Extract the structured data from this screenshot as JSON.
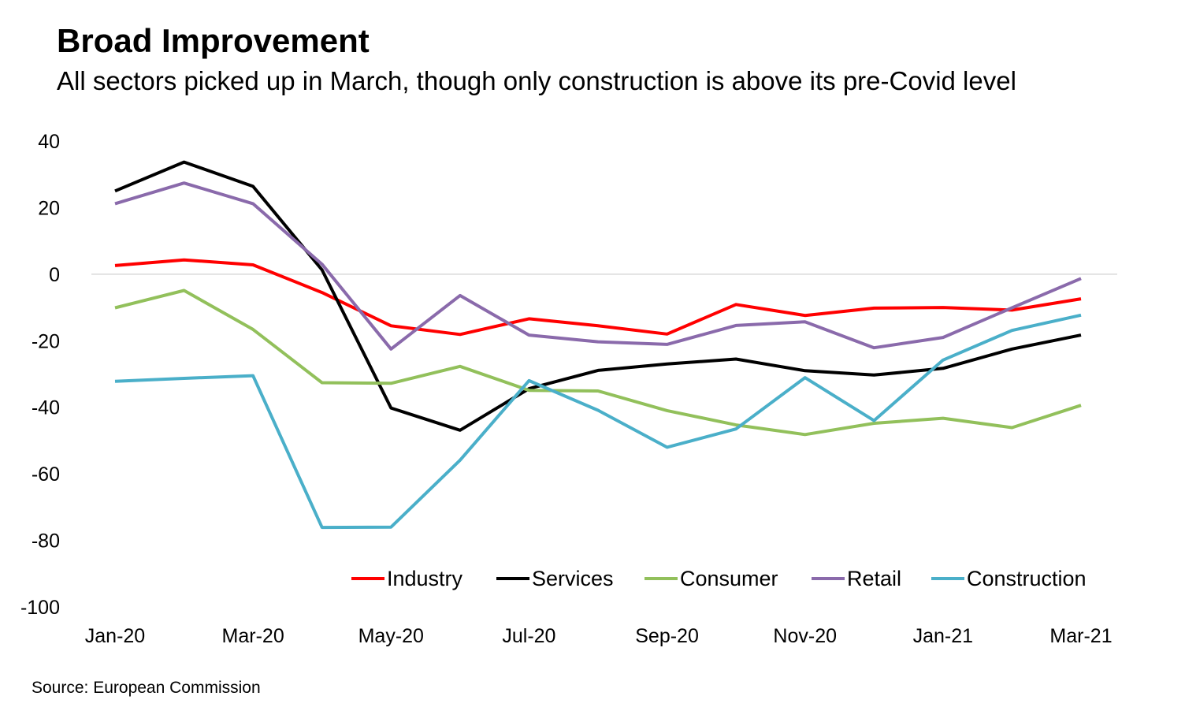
{
  "title": "Broad Improvement",
  "subtitle": "All sectors picked up in March, though only construction is above its pre-Covid level",
  "source": "Source: European Commission",
  "chart_data": {
    "type": "line",
    "categories": [
      "Jan-20",
      "Feb-20",
      "Mar-20",
      "Apr-20",
      "May-20",
      "Jun-20",
      "Jul-20",
      "Aug-20",
      "Sep-20",
      "Oct-20",
      "Nov-20",
      "Dec-20",
      "Jan-21",
      "Feb-21",
      "Mar-21"
    ],
    "xtick_labels": [
      "Jan-20",
      "Mar-20",
      "May-20",
      "Jul-20",
      "Sep-20",
      "Nov-20",
      "Jan-21",
      "Mar-21"
    ],
    "ylim": [
      -100,
      40
    ],
    "yticks": [
      40,
      20,
      0,
      -20,
      -40,
      -60,
      -80,
      -100
    ],
    "grid": false,
    "zero_line": true,
    "legend_position": "bottom-right",
    "series": [
      {
        "name": "Industry",
        "color": "#ff0000",
        "values": [
          2.6,
          4.3,
          2.8,
          -5.5,
          -15.5,
          -18.1,
          -13.4,
          -15.5,
          -18.0,
          -9.1,
          -12.4,
          -10.2,
          -10.0,
          -10.8,
          -7.4
        ]
      },
      {
        "name": "Services",
        "color": "#000000",
        "values": [
          25.0,
          33.7,
          26.4,
          1.3,
          -40.2,
          -46.9,
          -34.4,
          -28.9,
          -27.0,
          -25.5,
          -29.0,
          -30.3,
          -28.3,
          -22.5,
          -18.3
        ]
      },
      {
        "name": "Consumer",
        "color": "#92c05b",
        "values": [
          -10.1,
          -4.9,
          -16.6,
          -32.6,
          -32.8,
          -27.7,
          -34.9,
          -35.1,
          -41.0,
          -45.3,
          -48.2,
          -44.8,
          -43.3,
          -46.1,
          -39.4
        ]
      },
      {
        "name": "Retail",
        "color": "#8a6aab",
        "values": [
          21.2,
          27.4,
          21.2,
          3.0,
          -22.5,
          -6.4,
          -18.3,
          -20.3,
          -21.1,
          -15.4,
          -14.3,
          -22.1,
          -19.0,
          -10.1,
          -1.3
        ]
      },
      {
        "name": "Construction",
        "color": "#4aafc9",
        "values": [
          -32.2,
          -31.3,
          -30.5,
          -76.1,
          -76.0,
          -55.9,
          -32.0,
          -40.9,
          -52.0,
          -46.5,
          -31.1,
          -44.0,
          -25.8,
          -16.9,
          -12.3
        ]
      }
    ]
  }
}
